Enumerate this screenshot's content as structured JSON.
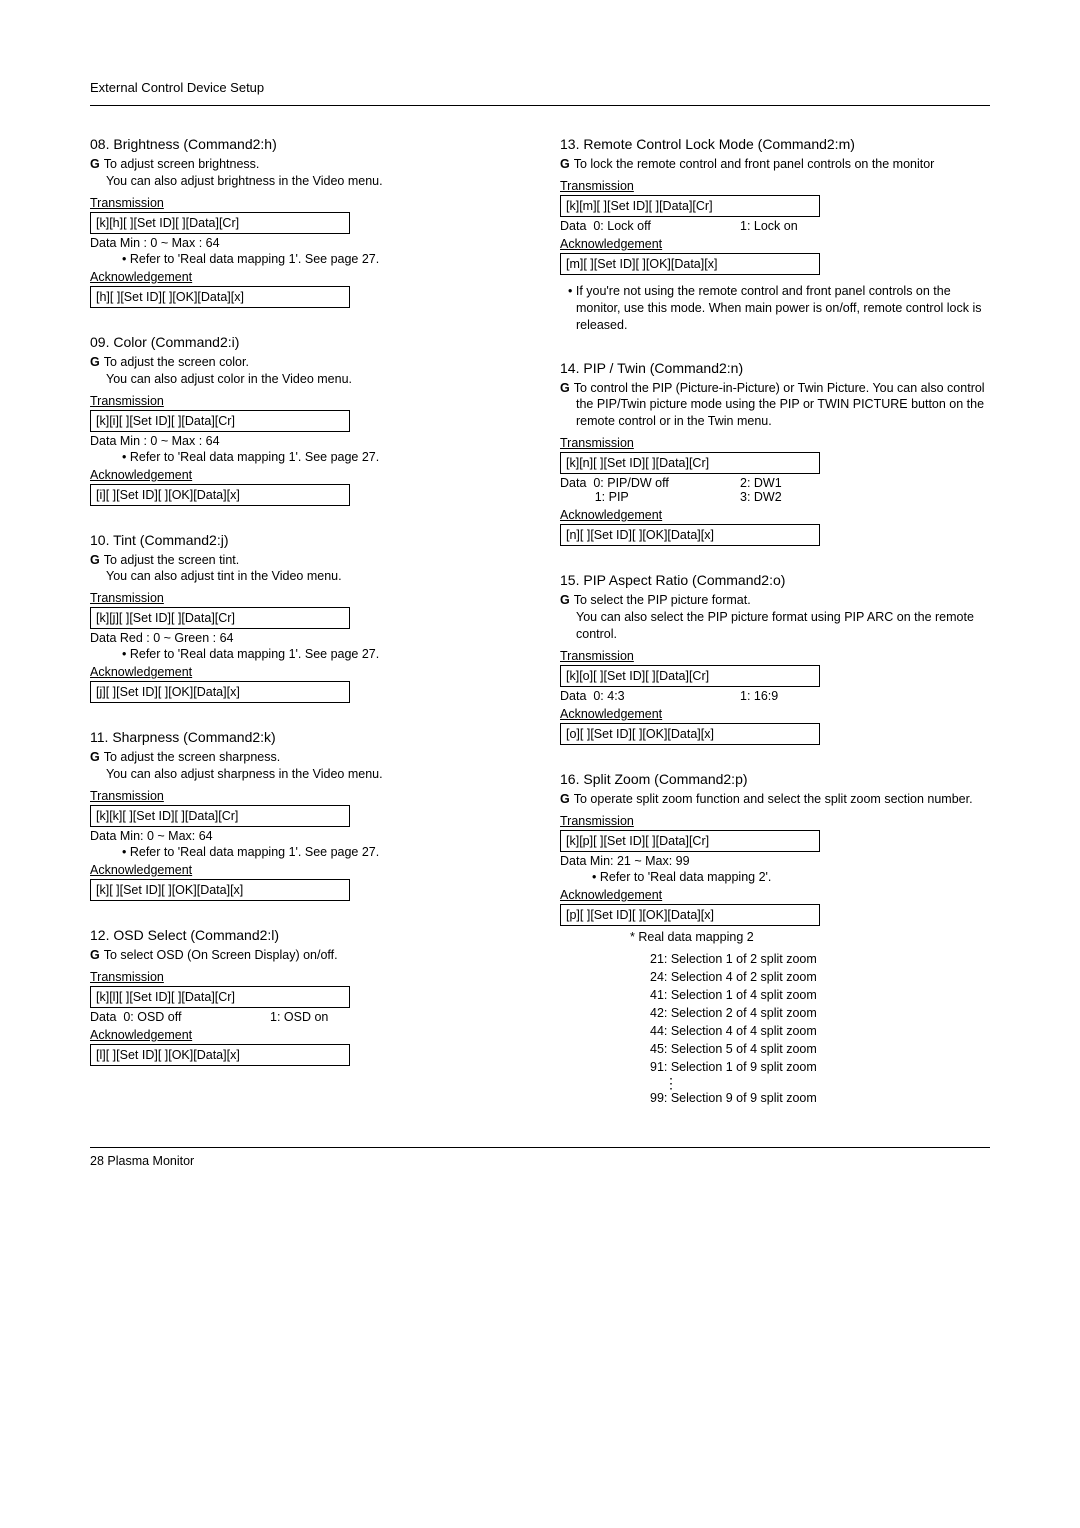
{
  "header": "External Control Device Setup",
  "footer": "28   Plasma Monitor",
  "left": [
    {
      "num": "08",
      "title": "Brightness (Command2:h)",
      "desc": "To adjust screen brightness.\nYou can also adjust brightness in the Video menu.",
      "tx": "[k][h][  ][Set ID][  ][Data][Cr]",
      "data": "Data   Min : 0 ~ Max : 64",
      "refer": "• Refer to 'Real data mapping 1'. See page 27.",
      "ack": "[h][  ][Set ID][  ][OK][Data][x]"
    },
    {
      "num": "09",
      "title": "Color (Command2:i)",
      "desc": "To adjust the screen color.\nYou can also adjust color in the Video menu.",
      "tx": "[k][i][  ][Set ID][  ][Data][Cr]",
      "data": "Data   Min : 0 ~ Max : 64",
      "refer": "• Refer to 'Real data mapping 1'. See page 27.",
      "ack": "[i][  ][Set ID][  ][OK][Data][x]"
    },
    {
      "num": "10",
      "title": "Tint (Command2:j)",
      "desc": "To adjust the screen tint.\nYou can also adjust tint in the Video menu.",
      "tx": "[k][j][  ][Set ID][  ][Data][Cr]",
      "data": "Data   Red : 0 ~ Green : 64",
      "refer": "• Refer to 'Real data mapping 1'. See page 27.",
      "ack": "[j][  ][Set ID][  ][OK][Data][x]"
    },
    {
      "num": "11",
      "title": "Sharpness (Command2:k)",
      "desc": "To adjust the screen sharpness.\nYou can also adjust sharpness in the Video menu.",
      "tx": "[k][k][  ][Set ID][  ][Data][Cr]",
      "data": "Data   Min: 0 ~ Max: 64",
      "refer": "• Refer to 'Real data mapping 1'. See page 27.",
      "ack": "[k][  ][Set ID][  ][OK][Data][x]"
    },
    {
      "num": "12",
      "title": "OSD Select (Command2:l)",
      "desc": "To select OSD (On Screen Display) on/off.",
      "tx": "[k][l][  ][Set ID][  ][Data][Cr]",
      "data2": [
        [
          "Data  0: OSD off",
          "1: OSD on"
        ]
      ],
      "ack": "[l][  ][Set ID][  ][OK][Data][x]"
    }
  ],
  "right": [
    {
      "num": "13",
      "title": "Remote Control Lock Mode (Command2:m)",
      "desc": "To lock the remote control and front panel controls on the monitor",
      "tx": "[k][m][  ][Set ID][  ][Data][Cr]",
      "data2": [
        [
          "Data  0: Lock off",
          "1: Lock on"
        ]
      ],
      "ack": "[m][  ][Set ID][  ][OK][Data][x]",
      "note": "• If you're not using the remote control and front panel controls on the monitor, use this mode. When main power is on/off, remote control lock is released."
    },
    {
      "num": "14",
      "title": "PIP / Twin (Command2:n)",
      "desc": "To control the PIP (Picture-in-Picture) or Twin Picture. You can also control the PIP/Twin picture mode using the PIP or TWIN PICTURE button on the remote control or in the Twin menu.",
      "tx": "[k][n][  ][Set ID][  ][Data][Cr]",
      "data2": [
        [
          "Data  0: PIP/DW off",
          "2: DW1"
        ],
        [
          "          1: PIP",
          "3: DW2"
        ]
      ],
      "ack": "[n][  ][Set ID][  ][OK][Data][x]"
    },
    {
      "num": "15",
      "title": "PIP Aspect Ratio (Command2:o)",
      "desc": "To select the PIP picture format.\nYou can also select the PIP picture format using PIP ARC on the remote control.",
      "tx": "[k][o][  ][Set ID][  ][Data][Cr]",
      "data2": [
        [
          "Data  0: 4:3",
          "1: 16:9"
        ]
      ],
      "ack": "[o][  ][Set ID][  ][OK][Data][x]"
    },
    {
      "num": "16",
      "title": "Split Zoom (Command2:p)",
      "desc": "To operate split zoom function and select the split zoom section number.",
      "tx": "[k][p][  ][Set ID][  ][Data][Cr]",
      "data": "Data   Min: 21 ~ Max: 99",
      "refer": "• Refer to 'Real data mapping 2'.",
      "ack": "[p][  ][Set ID][  ][OK][Data][x]",
      "maphead": "*  Real data mapping 2",
      "maplist": [
        "21: Selection 1 of 2 split zoom",
        "24: Selection 4 of 2 split zoom",
        "41: Selection 1 of 4 split zoom",
        "42: Selection 2 of 4 split zoom",
        "44: Selection 4 of 4 split zoom",
        "45: Selection 5 of 4 split zoom",
        "91: Selection 1 of 9 split zoom"
      ],
      "maplast": "99: Selection 9 of 9 split zoom"
    }
  ],
  "labels": {
    "transmission": "Transmission",
    "acknowledgement": "Acknowledgement"
  }
}
